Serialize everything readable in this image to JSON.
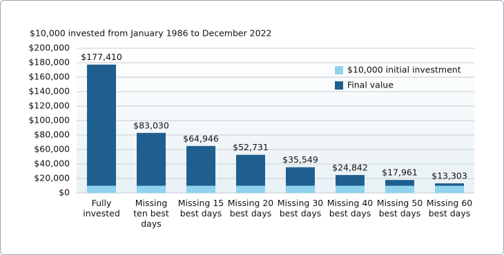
{
  "chart_data": {
    "type": "bar",
    "subtitle": "$10,000 invested from January 1986 to December 2022",
    "categories": [
      "Fully invested",
      "Missing ten best days",
      "Missing 15 best days",
      "Missing 20 best days",
      "Missing 30 best days",
      "Missing 40 best days",
      "Missing 50 best days",
      "Missing 60 best days"
    ],
    "series": [
      {
        "name": "Final value",
        "color": "#1f5f8f",
        "values": [
          177410,
          83030,
          64946,
          52731,
          35549,
          24842,
          17961,
          13303
        ],
        "value_labels": [
          "$177,410",
          "$83,030",
          "$64,946",
          "$52,731",
          "$35,549",
          "$24,842",
          "$17,961",
          "$13,303"
        ]
      },
      {
        "name": "$10,000 initial investment",
        "color": "#8fd3ec",
        "values": [
          10000,
          10000,
          10000,
          10000,
          10000,
          10000,
          10000,
          10000
        ]
      }
    ],
    "ylim": [
      0,
      200000
    ],
    "yticks": [
      {
        "value": 0,
        "label": "$0"
      },
      {
        "value": 20000,
        "label": "$20,000"
      },
      {
        "value": 40000,
        "label": "$40,000"
      },
      {
        "value": 60000,
        "label": "$60,000"
      },
      {
        "value": 80000,
        "label": "$80,000"
      },
      {
        "value": 100000,
        "label": "$100,000"
      },
      {
        "value": 120000,
        "label": "$120,000"
      },
      {
        "value": 140000,
        "label": "$140,000"
      },
      {
        "value": 160000,
        "label": "$160,000"
      },
      {
        "value": 180000,
        "label": "$180,000"
      },
      {
        "value": 200000,
        "label": "$200,000"
      }
    ],
    "grid": true,
    "legend": "top-right"
  }
}
